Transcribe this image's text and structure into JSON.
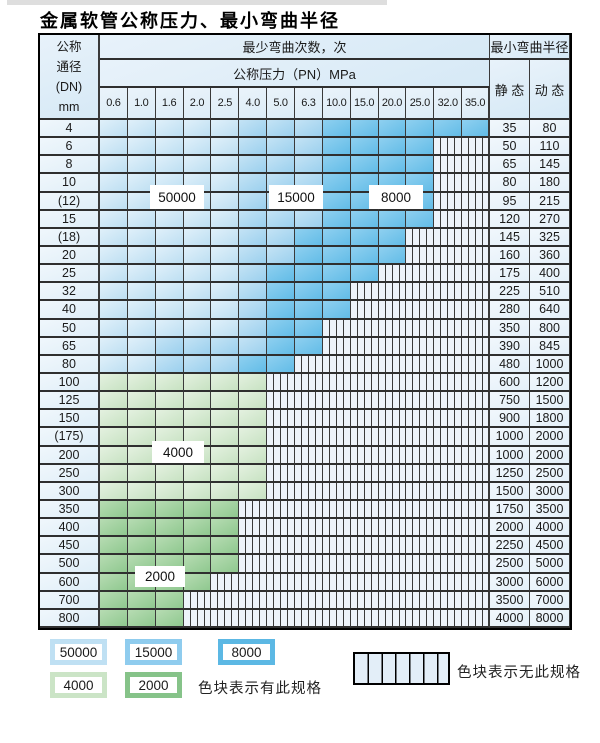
{
  "title": "金属软管公称压力、最小弯曲半径",
  "header": {
    "dn_lines": [
      "公称",
      "通径",
      "(DN)",
      "mm"
    ],
    "min_bend_cycles": "最少弯曲次数，次",
    "nominal_pressure": "公称压力（PN）MPa",
    "min_bend_radius": "最小弯曲半径",
    "static": "静 态",
    "dynamic": "动 态"
  },
  "pressure_columns": [
    "0.6",
    "1.0",
    "1.6",
    "2.0",
    "2.5",
    "4.0",
    "5.0",
    "6.3",
    "10.0",
    "15.0",
    "20.0",
    "25.0",
    "32.0",
    "35.0"
  ],
  "cycle_code_map": {
    "L": "50000",
    "M": "15000",
    "D": "8000",
    "G": "4000",
    "E": "2000",
    "X": "none"
  },
  "cycle_colors": {
    "50000": "#cde6f5",
    "15000": "#a5d4ef",
    "8000": "#74c3ea",
    "4000": "#d4e8d0",
    "2000": "#9ed09c",
    "none": "#edf3fa"
  },
  "rows": [
    {
      "dn": "4",
      "cells": "LLLLLMMMDDDDDD",
      "static": "35",
      "dynamic": "80"
    },
    {
      "dn": "6",
      "cells": "LLLLLMMMDDDDXX",
      "static": "50",
      "dynamic": "110"
    },
    {
      "dn": "8",
      "cells": "LLLLLMMMDDDDXX",
      "static": "65",
      "dynamic": "145"
    },
    {
      "dn": "10",
      "cells": "LLLLLMMMDDDDXX",
      "static": "80",
      "dynamic": "180"
    },
    {
      "dn": "(12)",
      "cells": "LLLLLMMMDDDDXX",
      "static": "95",
      "dynamic": "215"
    },
    {
      "dn": "15",
      "cells": "LLLLLMMMDDDDXX",
      "static": "120",
      "dynamic": "270"
    },
    {
      "dn": "(18)",
      "cells": "LLLLLMMDDDDXXX",
      "static": "145",
      "dynamic": "325"
    },
    {
      "dn": "20",
      "cells": "LLLLLMMDDDDXXX",
      "static": "160",
      "dynamic": "360"
    },
    {
      "dn": "25",
      "cells": "LLLLLMDDDDXXXX",
      "static": "175",
      "dynamic": "400"
    },
    {
      "dn": "32",
      "cells": "LLLLLMDDDXXXXX",
      "static": "225",
      "dynamic": "510"
    },
    {
      "dn": "40",
      "cells": "LLLLLMDDDXXXXX",
      "static": "280",
      "dynamic": "640"
    },
    {
      "dn": "50",
      "cells": "LLLLLMDDXXXXXX",
      "static": "350",
      "dynamic": "800"
    },
    {
      "dn": "65",
      "cells": "LLMMMMDDXXXXXX",
      "static": "390",
      "dynamic": "845"
    },
    {
      "dn": "80",
      "cells": "LLMMMDDXXXXXXX",
      "static": "480",
      "dynamic": "1000"
    },
    {
      "dn": "100",
      "cells": "GGGGGGXXXXXXXX",
      "static": "600",
      "dynamic": "1200"
    },
    {
      "dn": "125",
      "cells": "GGGGGGXXXXXXXX",
      "static": "750",
      "dynamic": "1500"
    },
    {
      "dn": "150",
      "cells": "GGGGGGXXXXXXXX",
      "static": "900",
      "dynamic": "1800"
    },
    {
      "dn": "(175)",
      "cells": "GGGGGGXXXXXXXX",
      "static": "1000",
      "dynamic": "2000"
    },
    {
      "dn": "200",
      "cells": "GGGGGGXXXXXXXX",
      "static": "1000",
      "dynamic": "2000"
    },
    {
      "dn": "250",
      "cells": "GGGGGGXXXXXXXX",
      "static": "1250",
      "dynamic": "2500"
    },
    {
      "dn": "300",
      "cells": "GGGGGGXXXXXXXX",
      "static": "1500",
      "dynamic": "3000"
    },
    {
      "dn": "350",
      "cells": "EEEEEXXXXXXXXX",
      "static": "1750",
      "dynamic": "3500"
    },
    {
      "dn": "400",
      "cells": "EEEEEXXXXXXXXX",
      "static": "2000",
      "dynamic": "4000"
    },
    {
      "dn": "450",
      "cells": "EEEEEXXXXXXXXX",
      "static": "2250",
      "dynamic": "4500"
    },
    {
      "dn": "500",
      "cells": "EEEEEXXXXXXXXX",
      "static": "2500",
      "dynamic": "5000"
    },
    {
      "dn": "600",
      "cells": "EEEEXXXXXXXXXX",
      "static": "3000",
      "dynamic": "6000"
    },
    {
      "dn": "700",
      "cells": "EEEXXXXXXXXXXX",
      "static": "3500",
      "dynamic": "7000"
    },
    {
      "dn": "800",
      "cells": "EEEXXXXXXXXXXX",
      "static": "4000",
      "dynamic": "8000"
    }
  ],
  "overlay_labels": [
    {
      "text": "50000"
    },
    {
      "text": "15000"
    },
    {
      "text": "8000"
    },
    {
      "text": "4000"
    },
    {
      "text": "2000"
    }
  ],
  "legend": {
    "swatches": [
      {
        "label": "50000"
      },
      {
        "label": "15000"
      },
      {
        "label": "8000"
      },
      {
        "label": "4000"
      },
      {
        "label": "2000"
      }
    ],
    "has_spec_text": "色块表示有此规格",
    "no_spec_text": "色块表示无此规格"
  }
}
